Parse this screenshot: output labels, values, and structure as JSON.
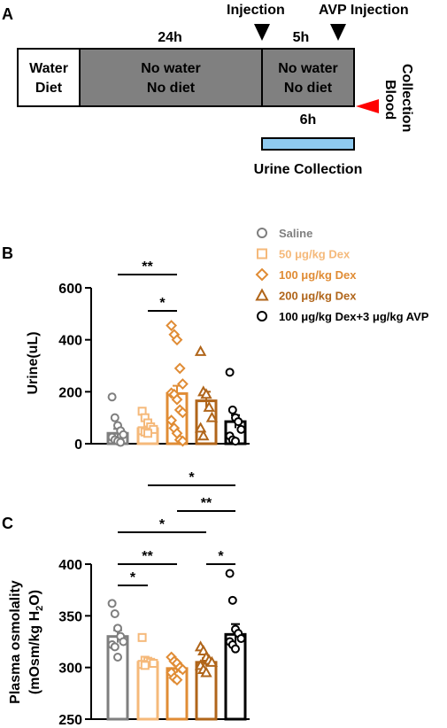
{
  "panel_a": {
    "letter": "A",
    "injection_label": "Injection",
    "avp_injection_label": "AVP Injection",
    "duration_24h": "24h",
    "duration_5h": "5h",
    "duration_6h": "6h",
    "box1_line1": "Water",
    "box1_line2": "Diet",
    "box2_line1": "No water",
    "box2_line2": "No diet",
    "box3_line1": "No water",
    "box3_line2": "No diet",
    "blood_line1": "Blood",
    "blood_line2": "Collection",
    "urine_label": "Urine Collection",
    "colors": {
      "grey_box": "#808080",
      "urine_bar": "#8ecaf0",
      "blood_arrow": "#ff0000"
    }
  },
  "legend": {
    "entries": [
      {
        "label": "Saline",
        "marker": "circle",
        "color": "#7f7f7f"
      },
      {
        "label": "50 μg/kg Dex",
        "marker": "square",
        "color": "#f5b97a"
      },
      {
        "label": "100 μg/kg Dex",
        "marker": "diamond",
        "color": "#e08c35"
      },
      {
        "label": "200 μg/kg Dex",
        "marker": "triangle",
        "color": "#b0651a"
      },
      {
        "label": "100 μg/kg Dex+3 μg/kg AVP",
        "marker": "circle",
        "color": "#000000"
      }
    ]
  },
  "chart_data": [
    {
      "panel": "B",
      "type": "bar",
      "ylabel": "Urine(uL)",
      "ylim": [
        0,
        600
      ],
      "yticks": [
        "0",
        "200",
        "400",
        "600"
      ],
      "categories": [
        "Saline",
        "50 μg/kg Dex",
        "100 μg/kg Dex",
        "200 μg/kg Dex",
        "100 μg/kg Dex+3 μg/kg AVP"
      ],
      "values": [
        40,
        58,
        193,
        165,
        85
      ],
      "errors": [
        17,
        10,
        30,
        35,
        25
      ],
      "points": [
        [
          180,
          100,
          70,
          50,
          35,
          25,
          15,
          10,
          5
        ],
        [
          125,
          100,
          80,
          65,
          55,
          50,
          45,
          40
        ],
        [
          455,
          420,
          400,
          290,
          230,
          195,
          190,
          170,
          130,
          120,
          90,
          60,
          40,
          15,
          10
        ],
        [
          355,
          200,
          190,
          140,
          100,
          60,
          30
        ],
        [
          275,
          130,
          100,
          85,
          55,
          30,
          15,
          10
        ]
      ],
      "significance": [
        {
          "groups": [
            0,
            2
          ],
          "label": "**"
        },
        {
          "groups": [
            1,
            2
          ],
          "label": "*"
        }
      ]
    },
    {
      "panel": "C",
      "type": "bar",
      "ylabel_line1": "Plasma osmolality",
      "ylabel_line2_prefix": "(mOsm/kg H",
      "ylabel_line2_sub": "2",
      "ylabel_line2_suffix": "O)",
      "ylim": [
        250,
        400
      ],
      "yticks": [
        "250",
        "300",
        "350",
        "400"
      ],
      "categories": [
        "Saline",
        "50 μg/kg Dex",
        "100 μg/kg Dex",
        "200 μg/kg Dex",
        "100 μg/kg Dex+3 μg/kg AVP"
      ],
      "values": [
        330,
        305,
        299,
        305,
        332
      ],
      "errors": [
        6,
        4,
        4,
        4,
        10
      ],
      "points": [
        [
          362,
          352,
          338,
          330,
          325,
          322,
          320,
          310
        ],
        [
          329,
          307,
          306,
          305,
          304,
          303,
          302
        ],
        [
          310,
          306,
          304,
          300,
          298,
          295,
          290,
          288
        ],
        [
          320,
          316,
          310,
          307,
          305,
          302,
          298,
          295
        ],
        [
          391,
          365,
          337,
          333,
          328,
          325,
          322,
          318
        ]
      ],
      "significance": [
        {
          "groups": [
            1,
            4
          ],
          "label": "*"
        },
        {
          "groups": [
            2,
            4
          ],
          "label": "**"
        },
        {
          "groups": [
            0,
            3
          ],
          "label": "*"
        },
        {
          "groups": [
            0,
            2
          ],
          "label": "**"
        },
        {
          "groups": [
            0,
            1
          ],
          "label": "*"
        },
        {
          "groups": [
            3,
            4
          ],
          "label": "*"
        }
      ]
    }
  ]
}
